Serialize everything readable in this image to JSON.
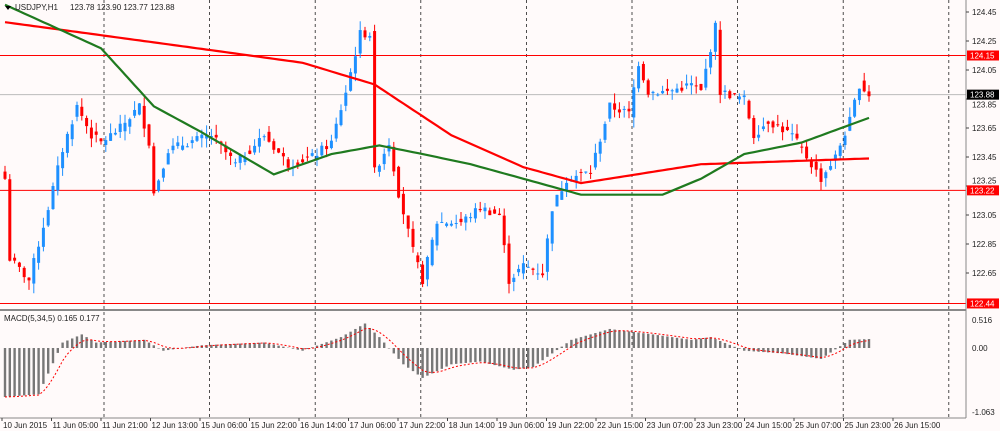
{
  "header": {
    "symbol": "USDJPY,H1",
    "ohlc": "123.78 123.90 123.77 123.88"
  },
  "macd_label": "MACD(5,34,5) 0.165 0.177",
  "colors": {
    "bull": "#1e90ff",
    "bear": "#ff0000",
    "slow_ma": "#ff0000",
    "fast_ma": "#1f7a1f",
    "hline": "#ff0000",
    "bg": "#fffafa"
  },
  "price_axis": [
    "124.45",
    "124.25",
    "124.05",
    "123.85",
    "123.65",
    "123.45",
    "123.25",
    "123.05",
    "122.85",
    "122.65"
  ],
  "price_tags": {
    "current": "123.88",
    "lines": [
      "124.15",
      "123.22",
      "122.44"
    ]
  },
  "macd_axis": [
    "0.516",
    "0.00",
    "-1.063"
  ],
  "time_axis": [
    "10 Jun 2015",
    "11 Jun 05:00",
    "11 Jun 21:00",
    "12 Jun 13:00",
    "15 Jun 06:00",
    "15 Jun 22:00",
    "16 Jun 14:00",
    "17 Jun 06:00",
    "17 Jun 22:00",
    "18 Jun 14:00",
    "19 Jun 06:00",
    "19 Jun 22:00",
    "22 Jun 15:00",
    "23 Jun 07:00",
    "23 Jun 23:00",
    "24 Jun 15:00",
    "25 Jun 07:00",
    "25 Jun 23:00",
    "26 Jun 15:00"
  ],
  "chart_data": {
    "type": "candlestick",
    "title": "USDJPY,H1",
    "ylim": [
      122.4,
      124.52
    ],
    "close_waypoints": [
      [
        0,
        123.3
      ],
      [
        1,
        122.75
      ],
      [
        5,
        122.6
      ],
      [
        9,
        123.1
      ],
      [
        12,
        123.5
      ],
      [
        15,
        123.8
      ],
      [
        18,
        123.6
      ],
      [
        20,
        123.55
      ],
      [
        24,
        123.65
      ],
      [
        28,
        123.8
      ],
      [
        30,
        123.55
      ],
      [
        31,
        123.2
      ],
      [
        34,
        123.5
      ],
      [
        38,
        123.55
      ],
      [
        43,
        123.6
      ],
      [
        48,
        123.4
      ],
      [
        54,
        123.6
      ],
      [
        59,
        123.4
      ],
      [
        64,
        123.45
      ],
      [
        68,
        123.55
      ],
      [
        71,
        123.9
      ],
      [
        74,
        124.3
      ],
      [
        76,
        124.3
      ],
      [
        77,
        123.35
      ],
      [
        80,
        123.55
      ],
      [
        82,
        123.2
      ],
      [
        85,
        122.8
      ],
      [
        87,
        122.6
      ],
      [
        90,
        123.0
      ],
      [
        95,
        123.0
      ],
      [
        99,
        123.1
      ],
      [
        103,
        123.05
      ],
      [
        105,
        122.6
      ],
      [
        108,
        122.7
      ],
      [
        112,
        122.65
      ],
      [
        114,
        123.1
      ],
      [
        117,
        123.3
      ],
      [
        122,
        123.35
      ],
      [
        126,
        123.8
      ],
      [
        130,
        123.75
      ],
      [
        132,
        124.1
      ],
      [
        134,
        123.9
      ],
      [
        138,
        123.9
      ],
      [
        143,
        123.95
      ],
      [
        145,
        123.9
      ],
      [
        148,
        124.35
      ],
      [
        149,
        123.9
      ],
      [
        154,
        123.85
      ],
      [
        156,
        123.6
      ],
      [
        159,
        123.7
      ],
      [
        164,
        123.6
      ],
      [
        168,
        123.4
      ],
      [
        170,
        123.3
      ],
      [
        173,
        123.45
      ],
      [
        176,
        123.7
      ],
      [
        178,
        123.95
      ],
      [
        180,
        123.88
      ]
    ],
    "slow_ma_waypoints": [
      [
        0,
        124.38
      ],
      [
        40,
        124.2
      ],
      [
        62,
        124.1
      ],
      [
        77,
        123.95
      ],
      [
        93,
        123.6
      ],
      [
        108,
        123.38
      ],
      [
        120,
        123.27
      ],
      [
        145,
        123.4
      ],
      [
        180,
        123.44
      ]
    ],
    "fast_ma_waypoints": [
      [
        0,
        124.5
      ],
      [
        20,
        124.2
      ],
      [
        31,
        123.8
      ],
      [
        41,
        123.62
      ],
      [
        56,
        123.33
      ],
      [
        68,
        123.47
      ],
      [
        78,
        123.53
      ],
      [
        87,
        123.47
      ],
      [
        97,
        123.4
      ],
      [
        108,
        123.3
      ],
      [
        120,
        123.19
      ],
      [
        137,
        123.19
      ],
      [
        145,
        123.3
      ],
      [
        154,
        123.47
      ],
      [
        166,
        123.55
      ],
      [
        180,
        123.72
      ]
    ],
    "macd_waypoints": [
      [
        0,
        -0.9
      ],
      [
        7,
        -0.85
      ],
      [
        12,
        0.1
      ],
      [
        16,
        0.25
      ],
      [
        19,
        0.1
      ],
      [
        29,
        0.15
      ],
      [
        33,
        -0.05
      ],
      [
        41,
        0.05
      ],
      [
        54,
        0.1
      ],
      [
        62,
        -0.05
      ],
      [
        70,
        0.2
      ],
      [
        75,
        0.45
      ],
      [
        78,
        0.2
      ],
      [
        83,
        -0.3
      ],
      [
        87,
        -0.55
      ],
      [
        93,
        -0.3
      ],
      [
        99,
        -0.25
      ],
      [
        106,
        -0.4
      ],
      [
        110,
        -0.35
      ],
      [
        114,
        -0.1
      ],
      [
        118,
        0.15
      ],
      [
        126,
        0.35
      ],
      [
        135,
        0.25
      ],
      [
        143,
        0.15
      ],
      [
        147,
        0.2
      ],
      [
        154,
        -0.05
      ],
      [
        162,
        -0.1
      ],
      [
        170,
        -0.2
      ],
      [
        176,
        0.15
      ],
      [
        180,
        0.165
      ]
    ],
    "macd_ylim": [
      -1.063,
      0.516
    ]
  }
}
